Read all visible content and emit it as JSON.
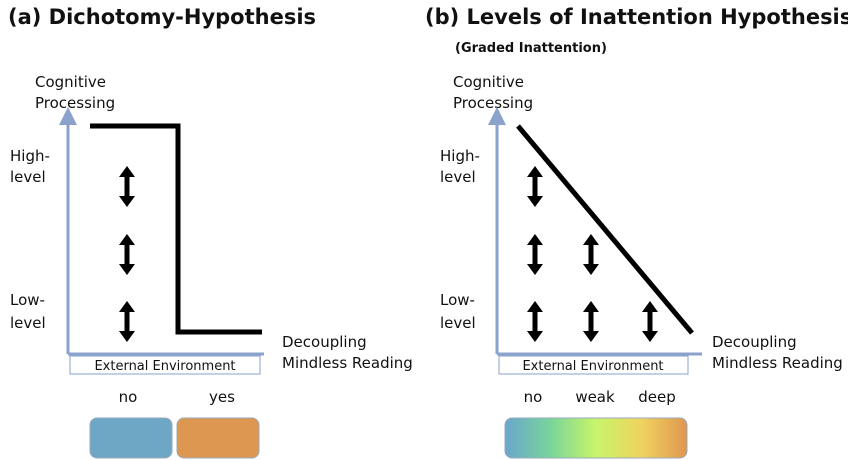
{
  "panels": [
    {
      "title": "(a) Dichotomy-Hypothesis",
      "y_axis_label": [
        "Cognitive",
        "Processing"
      ],
      "high_label": [
        "High-",
        "level"
      ],
      "low_label": [
        "Low-",
        "level"
      ],
      "x_axis_label": "External Environment",
      "outcome_label": [
        "Decoupling",
        "Mindless Reading"
      ],
      "categories": [
        "no",
        "yes"
      ]
    },
    {
      "title": "(b) Levels of Inattention Hypothesis",
      "subtitle": "(Graded Inattention)",
      "y_axis_label": [
        "Cognitive",
        "Processing"
      ],
      "high_label": [
        "High-",
        "level"
      ],
      "low_label": [
        "Low-",
        "level"
      ],
      "x_axis_label": "External Environment",
      "outcome_label": [
        "Decoupling",
        "Mindless Reading"
      ],
      "categories": [
        "no",
        "weak",
        "deep"
      ]
    }
  ]
}
